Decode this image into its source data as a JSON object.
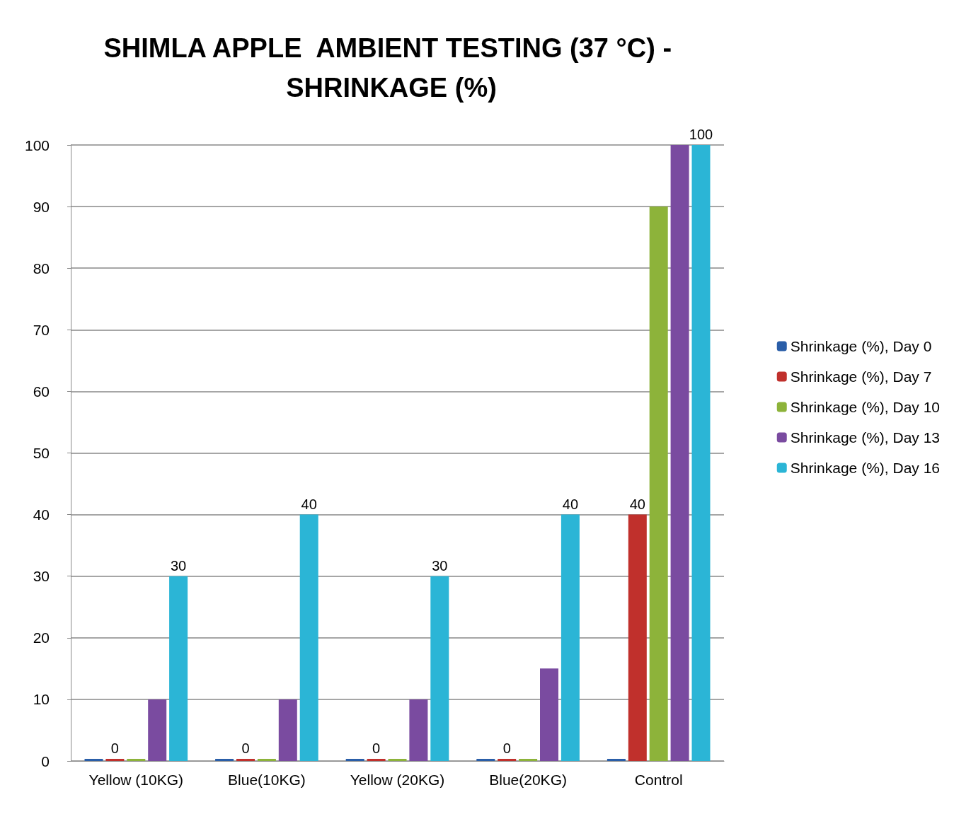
{
  "chart_data": {
    "type": "bar",
    "title": "SHIMLA APPLE  AMBIENT TESTING (37 °C) - SHRINKAGE (%)",
    "categories": [
      "Yellow (10KG)",
      "Blue(10KG)",
      "Yellow (20KG)",
      "Blue(20KG)",
      "Control"
    ],
    "series": [
      {
        "name": "Shrinkage (%), Day 0",
        "color": "#2a5ea8",
        "values": [
          0,
          0,
          0,
          0,
          0
        ]
      },
      {
        "name": "Shrinkage (%), Day 7",
        "color": "#c0302c",
        "values": [
          0,
          0,
          0,
          0,
          40
        ],
        "value_labels": [
          "0",
          "0",
          "0",
          "0",
          "40"
        ]
      },
      {
        "name": "Shrinkage (%), Day 10",
        "color": "#8db33a",
        "values": [
          0,
          0,
          0,
          0,
          90
        ]
      },
      {
        "name": "Shrinkage (%), Day 13",
        "color": "#7a4ba0",
        "values": [
          10,
          10,
          10,
          15,
          100
        ]
      },
      {
        "name": "Shrinkage (%), Day 16",
        "color": "#2bb5d6",
        "values": [
          30,
          40,
          30,
          40,
          100
        ],
        "value_labels": [
          "30",
          "40",
          "30",
          "40",
          "100"
        ]
      }
    ],
    "ylim": [
      0,
      100
    ],
    "yticks": [
      0,
      10,
      20,
      30,
      40,
      50,
      60,
      70,
      80,
      90,
      100
    ],
    "grid": "y",
    "legend": "right"
  }
}
